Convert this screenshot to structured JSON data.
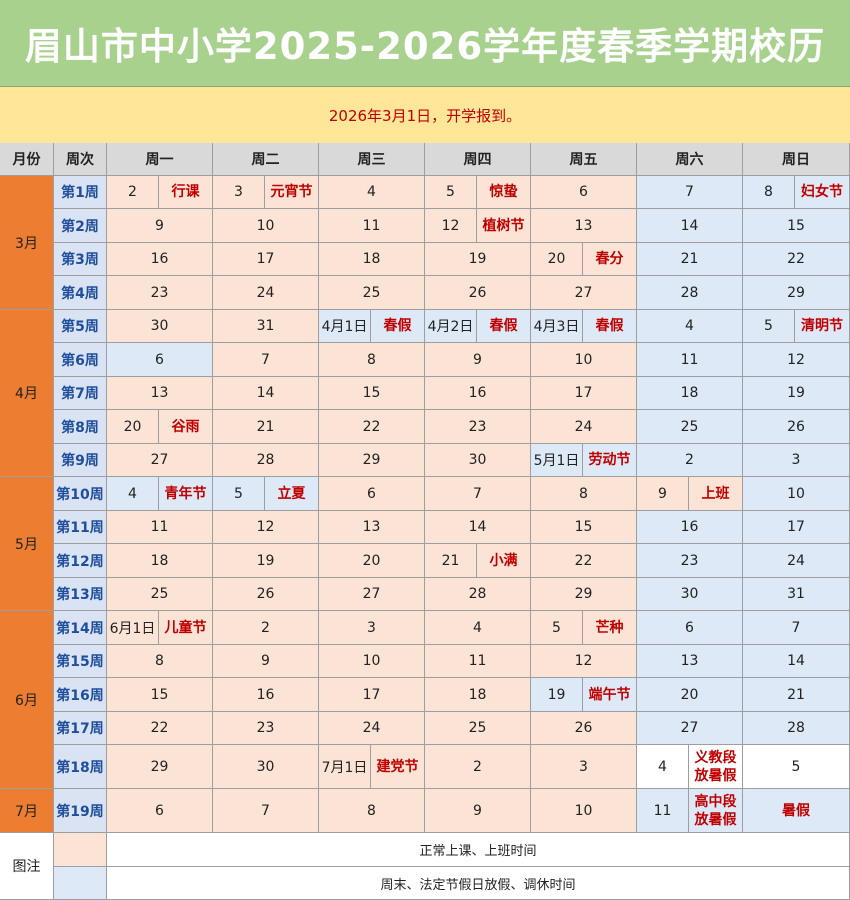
{
  "title": "眉山市中小学2025-2026学年度春季学期校历",
  "subtitle": "2026年3月1日，开学报到。",
  "colors": {
    "title_bg": "#a9d18e",
    "subtitle_bg": "#ffe699",
    "school_day": "#fbe4d6",
    "holiday": "#dde9f6",
    "month_col": "#ed7d31",
    "festival_text": "#c00000",
    "week_text": "#1f4e9a"
  },
  "header": {
    "month": "月份",
    "week": "周次",
    "days": [
      "周一",
      "周二",
      "周三",
      "周四",
      "周五",
      "周六",
      "周日"
    ]
  },
  "months": [
    {
      "label": "3月",
      "weeks": 4
    },
    {
      "label": "4月",
      "weeks": 5
    },
    {
      "label": "5月",
      "weeks": 4
    },
    {
      "label": "6月",
      "weeks": 5
    },
    {
      "label": "7月",
      "weeks": 1
    }
  ],
  "weeks": [
    {
      "label": "第1周",
      "days": [
        {
          "d": "2",
          "f": "行课",
          "t": "p"
        },
        {
          "d": "3",
          "f": "元宵节",
          "t": "p"
        },
        {
          "d": "4",
          "t": "p"
        },
        {
          "d": "5",
          "f": "惊蛰",
          "t": "p"
        },
        {
          "d": "6",
          "t": "p"
        },
        {
          "d": "7",
          "t": "b"
        },
        {
          "d": "8",
          "f": "妇女节",
          "t": "b"
        }
      ]
    },
    {
      "label": "第2周",
      "days": [
        {
          "d": "9",
          "t": "p"
        },
        {
          "d": "10",
          "t": "p"
        },
        {
          "d": "11",
          "t": "p"
        },
        {
          "d": "12",
          "f": "植树节",
          "t": "p"
        },
        {
          "d": "13",
          "t": "p"
        },
        {
          "d": "14",
          "t": "b"
        },
        {
          "d": "15",
          "t": "b"
        }
      ]
    },
    {
      "label": "第3周",
      "days": [
        {
          "d": "16",
          "t": "p"
        },
        {
          "d": "17",
          "t": "p"
        },
        {
          "d": "18",
          "t": "p"
        },
        {
          "d": "19",
          "t": "p"
        },
        {
          "d": "20",
          "f": "春分",
          "t": "p"
        },
        {
          "d": "21",
          "t": "b"
        },
        {
          "d": "22",
          "t": "b"
        }
      ]
    },
    {
      "label": "第4周",
      "days": [
        {
          "d": "23",
          "t": "p"
        },
        {
          "d": "24",
          "t": "p"
        },
        {
          "d": "25",
          "t": "p"
        },
        {
          "d": "26",
          "t": "p"
        },
        {
          "d": "27",
          "t": "p"
        },
        {
          "d": "28",
          "t": "b"
        },
        {
          "d": "29",
          "t": "b"
        }
      ]
    },
    {
      "label": "第5周",
      "days": [
        {
          "d": "30",
          "t": "p"
        },
        {
          "d": "31",
          "t": "p"
        },
        {
          "d": "4月1日",
          "f": "春假",
          "t": "b"
        },
        {
          "d": "4月2日",
          "f": "春假",
          "t": "b"
        },
        {
          "d": "4月3日",
          "f": "春假",
          "t": "b"
        },
        {
          "d": "4",
          "t": "b"
        },
        {
          "d": "5",
          "f": "清明节",
          "t": "b"
        }
      ]
    },
    {
      "label": "第6周",
      "days": [
        {
          "d": "6",
          "t": "b"
        },
        {
          "d": "7",
          "t": "p"
        },
        {
          "d": "8",
          "t": "p"
        },
        {
          "d": "9",
          "t": "p"
        },
        {
          "d": "10",
          "t": "p"
        },
        {
          "d": "11",
          "t": "b"
        },
        {
          "d": "12",
          "t": "b"
        }
      ]
    },
    {
      "label": "第7周",
      "days": [
        {
          "d": "13",
          "t": "p"
        },
        {
          "d": "14",
          "t": "p"
        },
        {
          "d": "15",
          "t": "p"
        },
        {
          "d": "16",
          "t": "p"
        },
        {
          "d": "17",
          "t": "p"
        },
        {
          "d": "18",
          "t": "b"
        },
        {
          "d": "19",
          "t": "b"
        }
      ]
    },
    {
      "label": "第8周",
      "days": [
        {
          "d": "20",
          "f": "谷雨",
          "t": "p"
        },
        {
          "d": "21",
          "t": "p"
        },
        {
          "d": "22",
          "t": "p"
        },
        {
          "d": "23",
          "t": "p"
        },
        {
          "d": "24",
          "t": "p"
        },
        {
          "d": "25",
          "t": "b"
        },
        {
          "d": "26",
          "t": "b"
        }
      ]
    },
    {
      "label": "第9周",
      "days": [
        {
          "d": "27",
          "t": "p"
        },
        {
          "d": "28",
          "t": "p"
        },
        {
          "d": "29",
          "t": "p"
        },
        {
          "d": "30",
          "t": "p"
        },
        {
          "d": "5月1日",
          "f": "劳动节",
          "t": "b"
        },
        {
          "d": "2",
          "t": "b"
        },
        {
          "d": "3",
          "t": "b"
        }
      ]
    },
    {
      "label": "第10周",
      "days": [
        {
          "d": "4",
          "f": "青年节",
          "t": "b"
        },
        {
          "d": "5",
          "f": "立夏",
          "t": "b"
        },
        {
          "d": "6",
          "t": "p"
        },
        {
          "d": "7",
          "t": "p"
        },
        {
          "d": "8",
          "t": "p"
        },
        {
          "d": "9",
          "f": "上班",
          "t": "p"
        },
        {
          "d": "10",
          "t": "b"
        }
      ]
    },
    {
      "label": "第11周",
      "days": [
        {
          "d": "11",
          "t": "p"
        },
        {
          "d": "12",
          "t": "p"
        },
        {
          "d": "13",
          "t": "p"
        },
        {
          "d": "14",
          "t": "p"
        },
        {
          "d": "15",
          "t": "p"
        },
        {
          "d": "16",
          "t": "b"
        },
        {
          "d": "17",
          "t": "b"
        }
      ]
    },
    {
      "label": "第12周",
      "days": [
        {
          "d": "18",
          "t": "p"
        },
        {
          "d": "19",
          "t": "p"
        },
        {
          "d": "20",
          "t": "p"
        },
        {
          "d": "21",
          "f": "小满",
          "t": "p"
        },
        {
          "d": "22",
          "t": "p"
        },
        {
          "d": "23",
          "t": "b"
        },
        {
          "d": "24",
          "t": "b"
        }
      ]
    },
    {
      "label": "第13周",
      "days": [
        {
          "d": "25",
          "t": "p"
        },
        {
          "d": "26",
          "t": "p"
        },
        {
          "d": "27",
          "t": "p"
        },
        {
          "d": "28",
          "t": "p"
        },
        {
          "d": "29",
          "t": "p"
        },
        {
          "d": "30",
          "t": "b"
        },
        {
          "d": "31",
          "t": "b"
        }
      ]
    },
    {
      "label": "第14周",
      "days": [
        {
          "d": "6月1日",
          "f": "儿童节",
          "t": "p"
        },
        {
          "d": "2",
          "t": "p"
        },
        {
          "d": "3",
          "t": "p"
        },
        {
          "d": "4",
          "t": "p"
        },
        {
          "d": "5",
          "f": "芒种",
          "t": "p"
        },
        {
          "d": "6",
          "t": "b"
        },
        {
          "d": "7",
          "t": "b"
        }
      ]
    },
    {
      "label": "第15周",
      "days": [
        {
          "d": "8",
          "t": "p"
        },
        {
          "d": "9",
          "t": "p"
        },
        {
          "d": "10",
          "t": "p"
        },
        {
          "d": "11",
          "t": "p"
        },
        {
          "d": "12",
          "t": "p"
        },
        {
          "d": "13",
          "t": "b"
        },
        {
          "d": "14",
          "t": "b"
        }
      ]
    },
    {
      "label": "第16周",
      "days": [
        {
          "d": "15",
          "t": "p"
        },
        {
          "d": "16",
          "t": "p"
        },
        {
          "d": "17",
          "t": "p"
        },
        {
          "d": "18",
          "t": "p"
        },
        {
          "d": "19",
          "f": "端午节",
          "t": "b"
        },
        {
          "d": "20",
          "t": "b"
        },
        {
          "d": "21",
          "t": "b"
        }
      ]
    },
    {
      "label": "第17周",
      "days": [
        {
          "d": "22",
          "t": "p"
        },
        {
          "d": "23",
          "t": "p"
        },
        {
          "d": "24",
          "t": "p"
        },
        {
          "d": "25",
          "t": "p"
        },
        {
          "d": "26",
          "t": "p"
        },
        {
          "d": "27",
          "t": "b"
        },
        {
          "d": "28",
          "t": "b"
        }
      ]
    },
    {
      "label": "第18周",
      "days": [
        {
          "d": "29",
          "t": "p"
        },
        {
          "d": "30",
          "t": "p"
        },
        {
          "d": "7月1日",
          "f": "建党节",
          "t": "p"
        },
        {
          "d": "2",
          "t": "p"
        },
        {
          "d": "3",
          "t": "p"
        },
        {
          "d": "4",
          "f": "义教段放暑假",
          "t": "w"
        },
        {
          "d": "5",
          "t": "w"
        }
      ]
    },
    {
      "label": "第19周",
      "days": [
        {
          "d": "6",
          "t": "p"
        },
        {
          "d": "7",
          "t": "p"
        },
        {
          "d": "8",
          "t": "p"
        },
        {
          "d": "9",
          "t": "p"
        },
        {
          "d": "10",
          "t": "p"
        },
        {
          "d": "11",
          "f": "高中段放暑假",
          "t": "b"
        },
        {
          "d": "",
          "f": "暑假",
          "t": "b",
          "merged": true
        }
      ]
    }
  ],
  "legend": {
    "label": "图注",
    "items": [
      {
        "text": "正常上课、上班时间",
        "t": "p"
      },
      {
        "text": "周末、法定节假日放假、调休时间",
        "t": "b"
      }
    ]
  }
}
